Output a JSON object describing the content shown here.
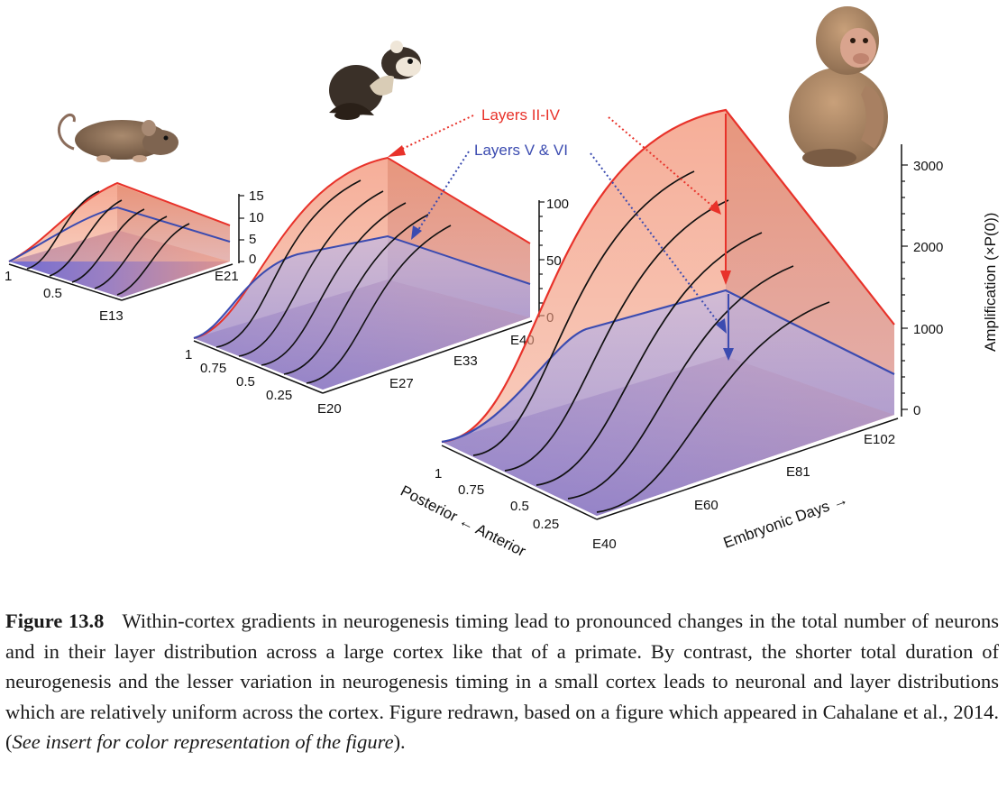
{
  "figure": {
    "annotations": {
      "upper_label": "Layers II-IV",
      "lower_label": "Layers V & VI",
      "upper_color": "#e8322a",
      "lower_color": "#3b4bb0"
    },
    "rat_panel": {
      "z_ticks": [
        "15",
        "10",
        "5",
        "0"
      ],
      "position_ticks": [
        "1",
        "0.5"
      ],
      "day_ticks": [
        "E13",
        "E21"
      ]
    },
    "ferret_panel": {
      "z_ticks": [
        "100",
        "50",
        "0"
      ],
      "position_ticks": [
        "1",
        "0.75",
        "0.5",
        "0.25"
      ],
      "day_ticks": [
        "E20",
        "E27",
        "E33",
        "E40"
      ]
    },
    "macaque_panel": {
      "z_ticks": [
        "3000",
        "2000",
        "1000",
        "0"
      ],
      "position_ticks": [
        "1",
        "0.75",
        "0.5",
        "0.25"
      ],
      "day_ticks": [
        "E40",
        "E60",
        "E81",
        "E102"
      ],
      "z_axis_label": "Amplification (×P(0))",
      "position_axis_label": "Posterior ← Anterior",
      "day_axis_label": "Embryonic Days →"
    },
    "animals": [
      "rat-icon",
      "ferret-icon",
      "macaque-icon"
    ]
  },
  "caption": {
    "label": "Figure 13.8",
    "text": "Within-cortex gradients in neurogenesis timing lead to pronounced changes in the total number of neurons and in their layer distribution across a large cortex like that of a primate. By contrast, the shorter total duration of neurogenesis and the lesser variation in neurogenesis timing in a small cortex leads to neuronal and layer distributions which are relatively uniform across the cortex. Figure redrawn, based on a figure which appeared in Cahalane et al., 2014. (",
    "italic_note": "See insert for color representation of the figure",
    "end": ")."
  }
}
